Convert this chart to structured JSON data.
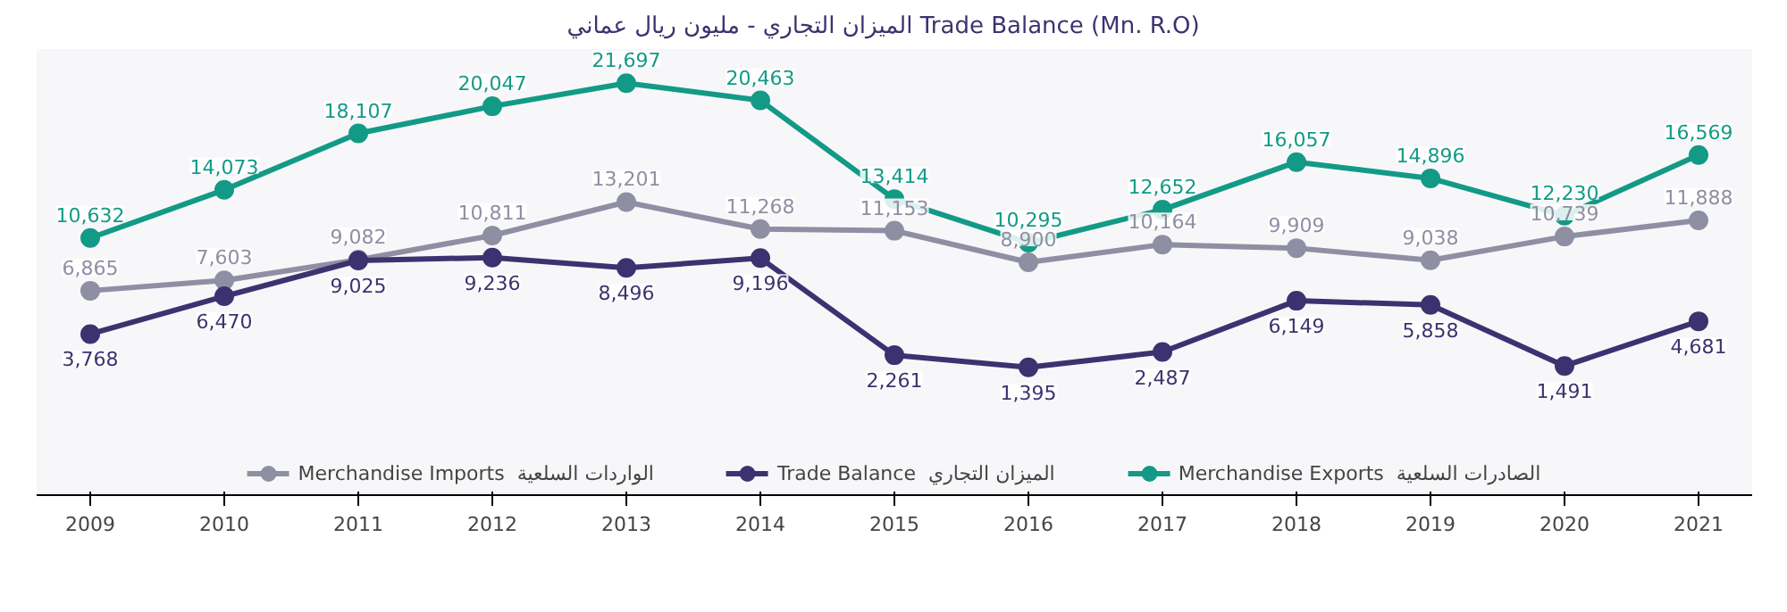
{
  "chart_data": {
    "type": "line",
    "title": "الميزان التجاري - مليون ريال عماني    Trade Balance (Mn. R.O)",
    "categories": [
      "2009",
      "2010",
      "2011",
      "2012",
      "2013",
      "2014",
      "2015",
      "2016",
      "2017",
      "2018",
      "2019",
      "2020",
      "2021"
    ],
    "series": [
      {
        "name": "Merchandise Imports  الواردات السلعية",
        "color": "#8e8fa3",
        "values": [
          6865,
          7603,
          9082,
          10811,
          13201,
          11268,
          11153,
          8900,
          10164,
          9909,
          9038,
          10739,
          11888
        ],
        "value_labels": [
          "6,865",
          "7,603",
          "9,082",
          "10,811",
          "13,201",
          "11,268",
          "11,153",
          "8,900",
          "10,164",
          "9,909",
          "9,038",
          "10,739",
          "11,888"
        ]
      },
      {
        "name": "Trade Balance  الميزان التجاري",
        "color": "#3d3270",
        "values": [
          3768,
          6470,
          9025,
          9236,
          8496,
          9196,
          2261,
          1395,
          2487,
          6149,
          5858,
          1491,
          4681
        ],
        "value_labels": [
          "3,768",
          "6,470",
          "9,025",
          "9,236",
          "8,496",
          "9,196",
          "2,261",
          "1,395",
          "2,487",
          "6,149",
          "5,858",
          "1,491",
          "4,681"
        ]
      },
      {
        "name": "Merchandise Exports  الصادرات السلعية",
        "color": "#139a87",
        "values": [
          10632,
          14073,
          18107,
          20047,
          21697,
          20463,
          13414,
          10295,
          12652,
          16057,
          14896,
          12230,
          16569
        ],
        "value_labels": [
          "10,632",
          "14,073",
          "18,107",
          "20,047",
          "21,697",
          "20,463",
          "13,414",
          "10,295",
          "12,652",
          "16,057",
          "14,896",
          "12,230",
          "16,569"
        ]
      }
    ],
    "marker": "circle",
    "line_style": "solid",
    "legend": "bottom",
    "grid": false
  }
}
